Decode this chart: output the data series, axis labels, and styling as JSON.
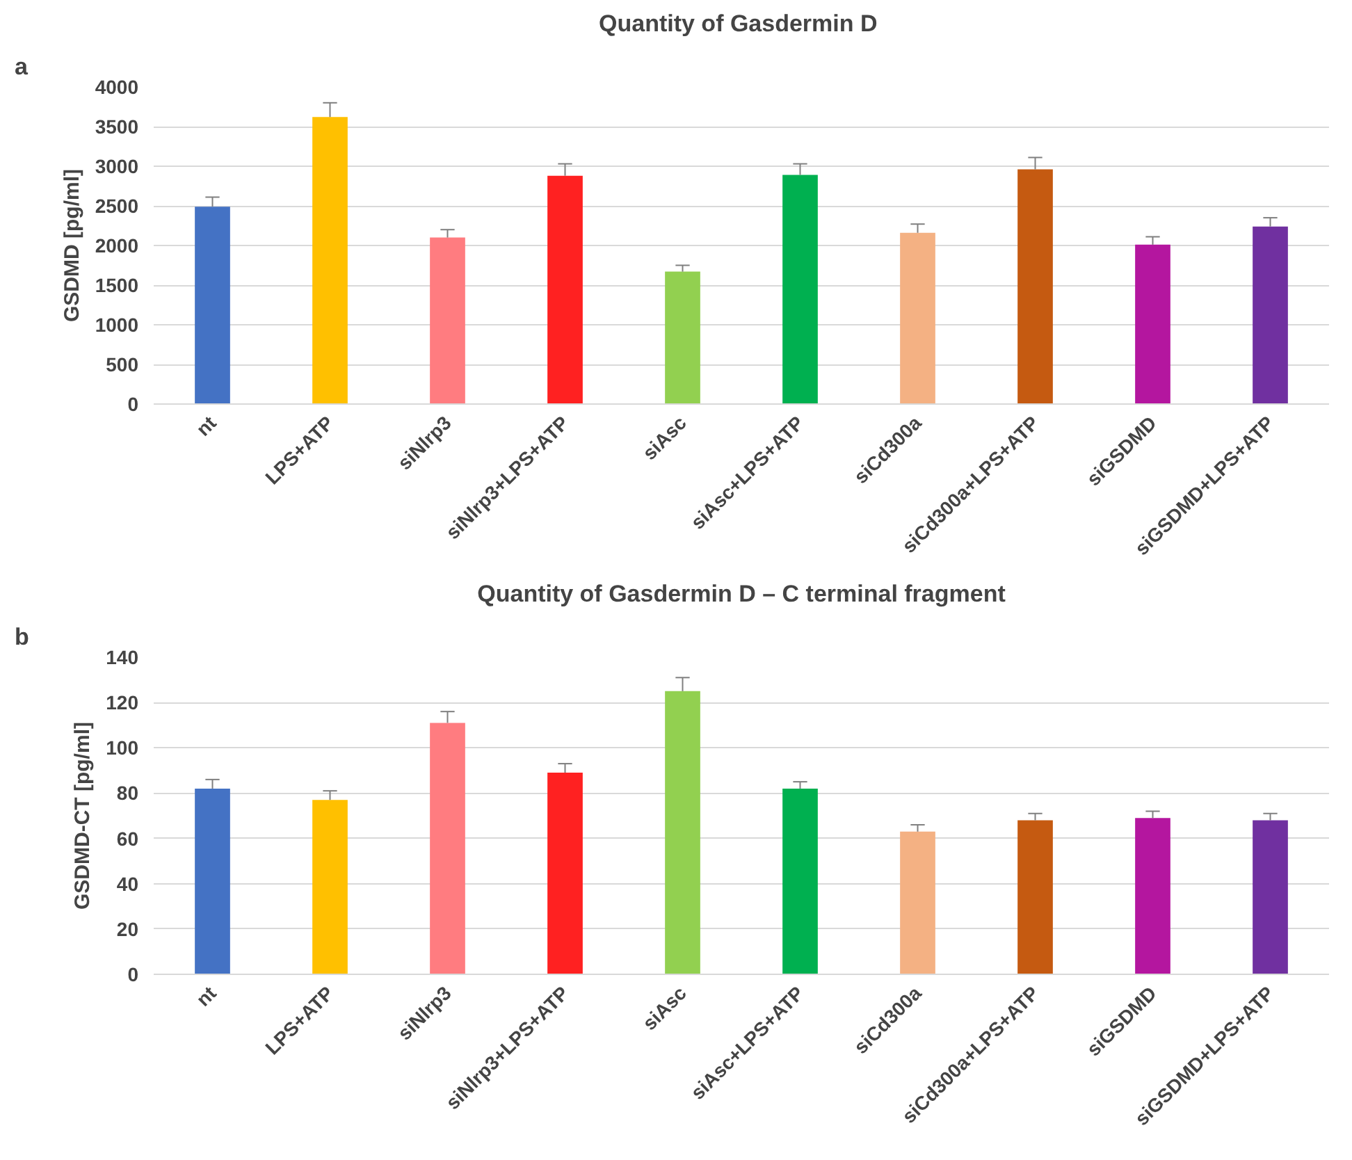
{
  "chart_data": [
    {
      "type": "bar",
      "title": "Quantity of  Gasdermin D",
      "ylabel": "GSDMD [pg/ml]",
      "annotations": [
        "a"
      ],
      "categories": [
        "nt",
        "LPS+ATP",
        "siNlrp3",
        "siNlrp3+LPS+ATP",
        "siAsc",
        "siAsc+LPS+ATP",
        "siCd300a",
        "siCd300a+LPS+ATP",
        "siGSDMD",
        "siGSDMD+LPS+ATP"
      ],
      "values": [
        2490,
        3620,
        2100,
        2880,
        1670,
        2890,
        2160,
        2960,
        2010,
        2240
      ],
      "errors": [
        [
          2490,
          2610
        ],
        [
          3620,
          3800
        ],
        [
          2100,
          2200
        ],
        [
          2880,
          3030
        ],
        [
          1670,
          1750
        ],
        [
          2890,
          3030
        ],
        [
          2160,
          2270
        ],
        [
          2960,
          3110
        ],
        [
          2010,
          2110
        ],
        [
          2240,
          2350
        ]
      ],
      "colors": [
        "#4472c4",
        "#ffc000",
        "#ff7c80",
        "#ff2121",
        "#92d050",
        "#00b050",
        "#f4b183",
        "#c55a11",
        "#b4169f",
        "#7030a0"
      ],
      "ylim": [
        0,
        4000
      ],
      "yticks": [
        0,
        500,
        1000,
        1500,
        2000,
        2500,
        3000,
        3500,
        4000
      ],
      "grid": "y"
    },
    {
      "type": "bar",
      "title": "Quantity of Gasdermin D – C terminal fragment",
      "ylabel": "GSDMD-CT [pg/ml]",
      "annotations": [
        "b"
      ],
      "categories": [
        "nt",
        "LPS+ATP",
        "siNlrp3",
        "siNlrp3+LPS+ATP",
        "siAsc",
        "siAsc+LPS+ATP",
        "siCd300a",
        "siCd300a+LPS+ATP",
        "siGSDMD",
        "siGSDMD+LPS+ATP"
      ],
      "values": [
        82,
        77,
        111,
        89,
        125,
        82,
        63,
        68,
        69,
        68
      ],
      "errors": [
        [
          82,
          86
        ],
        [
          77,
          81
        ],
        [
          111,
          116
        ],
        [
          89,
          93
        ],
        [
          125,
          131
        ],
        [
          82,
          85
        ],
        [
          63,
          66
        ],
        [
          68,
          71
        ],
        [
          69,
          72
        ],
        [
          68,
          71
        ]
      ],
      "colors": [
        "#4472c4",
        "#ffc000",
        "#ff7c80",
        "#ff2121",
        "#92d050",
        "#00b050",
        "#f4b183",
        "#c55a11",
        "#b4169f",
        "#7030a0"
      ],
      "ylim": [
        0,
        140
      ],
      "yticks": [
        0,
        20,
        40,
        60,
        80,
        100,
        120,
        140
      ],
      "grid": "y"
    }
  ]
}
